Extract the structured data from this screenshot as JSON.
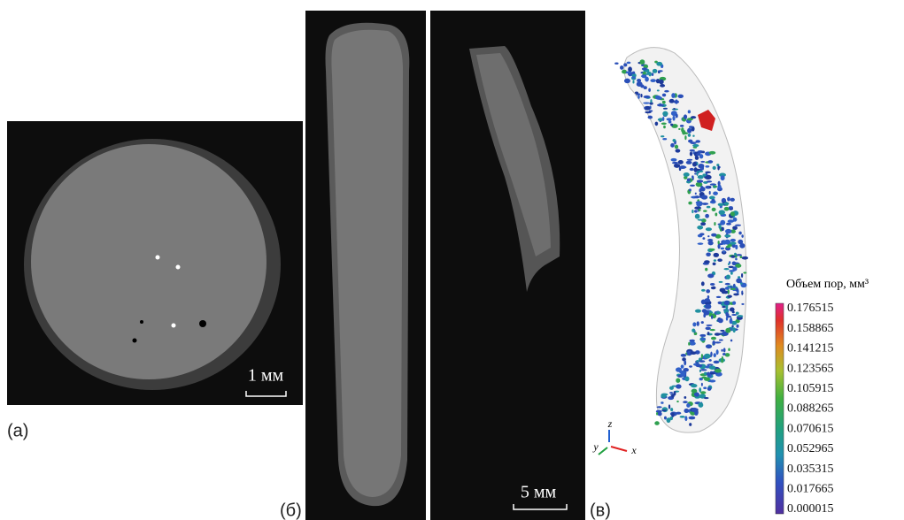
{
  "panels": {
    "a": {
      "label": "(а)",
      "scale_bar": "1 мм"
    },
    "b": {
      "label": "(б)",
      "scale_bar": "5 мм"
    },
    "c": {
      "label": "(в)",
      "axes": [
        "z",
        "y",
        "x"
      ],
      "colorbar": {
        "title": "Объем пор, мм³",
        "ticks": [
          0.176515,
          0.158865,
          0.141215,
          0.123565,
          0.105915,
          0.088265,
          0.070615,
          0.052965,
          0.035315,
          0.017665,
          1.5e-05
        ]
      }
    }
  }
}
